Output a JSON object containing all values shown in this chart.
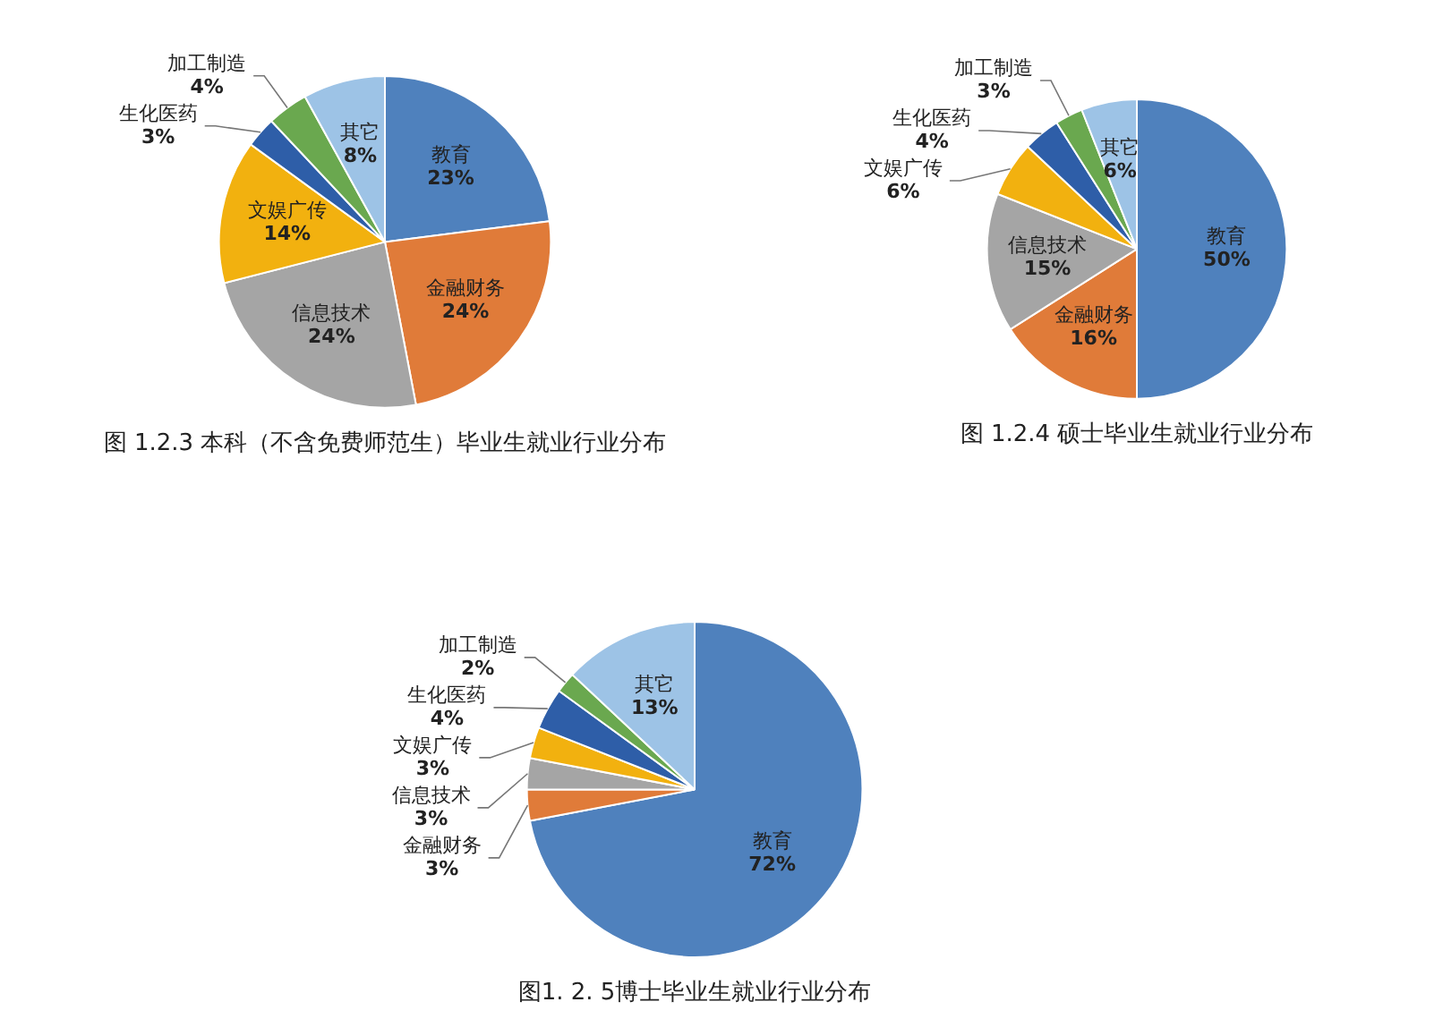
{
  "chart_data": [
    {
      "type": "pie",
      "title": "图 1.2.3 本科（不含免费师范生）毕业生就业行业分布",
      "categories": [
        "教育",
        "金融财务",
        "信息技术",
        "文娱广传",
        "生化医药",
        "加工制造",
        "其它"
      ],
      "values": [
        23,
        24,
        24,
        14,
        3,
        4,
        8
      ],
      "value_labels": [
        "23%",
        "24%",
        "24%",
        "14%",
        "3%",
        "4%",
        "8%"
      ],
      "colors": [
        "#4f81bd",
        "#e07b39",
        "#a5a5a5",
        "#f2b10f",
        "#2e5ea8",
        "#6aa84f",
        "#9dc3e6"
      ],
      "legend": false
    },
    {
      "type": "pie",
      "title": "图 1.2.4 硕士毕业生就业行业分布",
      "categories": [
        "教育",
        "金融财务",
        "信息技术",
        "文娱广传",
        "生化医药",
        "加工制造",
        "其它"
      ],
      "values": [
        50,
        16,
        15,
        6,
        4,
        3,
        6
      ],
      "value_labels": [
        "50%",
        "16%",
        "15%",
        "6%",
        "4%",
        "3%",
        "6%"
      ],
      "colors": [
        "#4f81bd",
        "#e07b39",
        "#a5a5a5",
        "#f2b10f",
        "#2e5ea8",
        "#6aa84f",
        "#9dc3e6"
      ],
      "legend": false
    },
    {
      "type": "pie",
      "title": "图1. 2. 5博士毕业生就业行业分布",
      "categories": [
        "教育",
        "金融财务",
        "信息技术",
        "文娱广传",
        "生化医药",
        "加工制造",
        "其它"
      ],
      "values": [
        72,
        3,
        3,
        3,
        4,
        2,
        13
      ],
      "value_labels": [
        "72%",
        "3%",
        "3%",
        "3%",
        "4%",
        "2%",
        "13%"
      ],
      "colors": [
        "#4f81bd",
        "#e07b39",
        "#a5a5a5",
        "#f2b10f",
        "#2e5ea8",
        "#6aa84f",
        "#9dc3e6"
      ],
      "legend": false
    }
  ]
}
